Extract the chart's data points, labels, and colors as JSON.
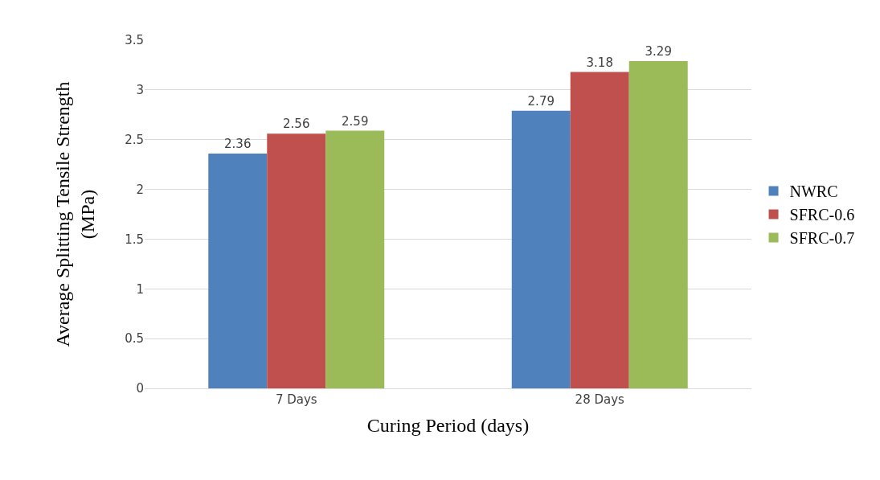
{
  "chart_data": {
    "type": "bar",
    "xlabel": "Curing Period (days)",
    "ylabel": "Average Splitting Tensile Strength\n(MPa)",
    "categories": [
      "7 Days",
      "28 Days"
    ],
    "series": [
      {
        "name": "NWRC",
        "color": "#4f81bd",
        "values": [
          2.36,
          2.79
        ]
      },
      {
        "name": "SFRC-0.6",
        "color": "#c0504d",
        "values": [
          2.56,
          3.18
        ]
      },
      {
        "name": "SFRC-0.7",
        "color": "#9bbb59",
        "values": [
          2.59,
          3.29
        ]
      }
    ],
    "ylim": [
      0,
      3.5
    ],
    "yticks": [
      0,
      0.5,
      1,
      1.5,
      2,
      2.5,
      3,
      3.5
    ],
    "grid": "y",
    "legend": "right",
    "data_labels": true
  }
}
